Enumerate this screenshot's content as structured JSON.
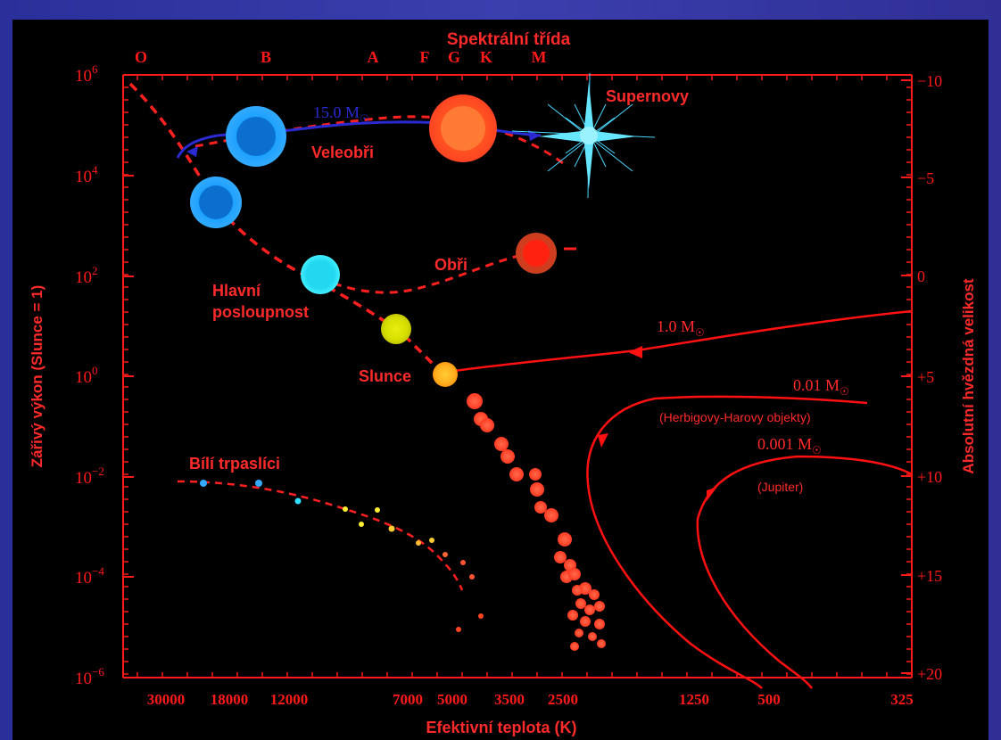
{
  "chart_data": {
    "type": "scatter",
    "top_axis_title": "Spektrální třída",
    "spectral_classes": [
      "O",
      "B",
      "A",
      "F",
      "G",
      "K",
      "M"
    ],
    "left_axis_title": "Zářivý výkon (Slunce = 1)",
    "left_ticks": [
      {
        "base": "10",
        "exp": "6"
      },
      {
        "base": "10",
        "exp": "4"
      },
      {
        "base": "10",
        "exp": "2"
      },
      {
        "base": "10",
        "exp": "0"
      },
      {
        "base": "10",
        "exp": "−2"
      },
      {
        "base": "10",
        "exp": "−4"
      },
      {
        "base": "10",
        "exp": "−6"
      }
    ],
    "right_axis_title": "Absolutní hvězdná velikost",
    "right_ticks": [
      "−10",
      "−5",
      "0",
      "+5",
      "+10",
      "+15",
      "+20"
    ],
    "bottom_axis_title": "Efektivní teplota (K)",
    "bottom_ticks": [
      "30000",
      "18000",
      "12000",
      "7000",
      "5000",
      "3500",
      "2500",
      "1250",
      "500",
      "325"
    ],
    "ylim_log_luminosity": [
      -6,
      6
    ],
    "regions": {
      "supergiants": "Veleobři",
      "supernovae": "Supernovy",
      "giants": "Obři",
      "main_sequence_line1": "Hlavní",
      "main_sequence_line2": "posloupnost",
      "sun": "Slunce",
      "white_dwarfs": "Bílí trpaslíci"
    },
    "tracks": [
      {
        "name": "15.0 M",
        "color": "#2222cc"
      },
      {
        "name": "1.0 M",
        "color": "#ff1111"
      },
      {
        "name": "0.01 M",
        "note": "(Herbigovy-Harovy objekty)",
        "color": "#ff1111"
      },
      {
        "name": "0.001 M",
        "note": "(Jupiter)",
        "color": "#ff1111"
      }
    ],
    "colors": {
      "axes": "#ff1a1a",
      "background": "#000000",
      "main_sequence_curve": "#ff2020",
      "track_15": "#2233cc"
    }
  }
}
